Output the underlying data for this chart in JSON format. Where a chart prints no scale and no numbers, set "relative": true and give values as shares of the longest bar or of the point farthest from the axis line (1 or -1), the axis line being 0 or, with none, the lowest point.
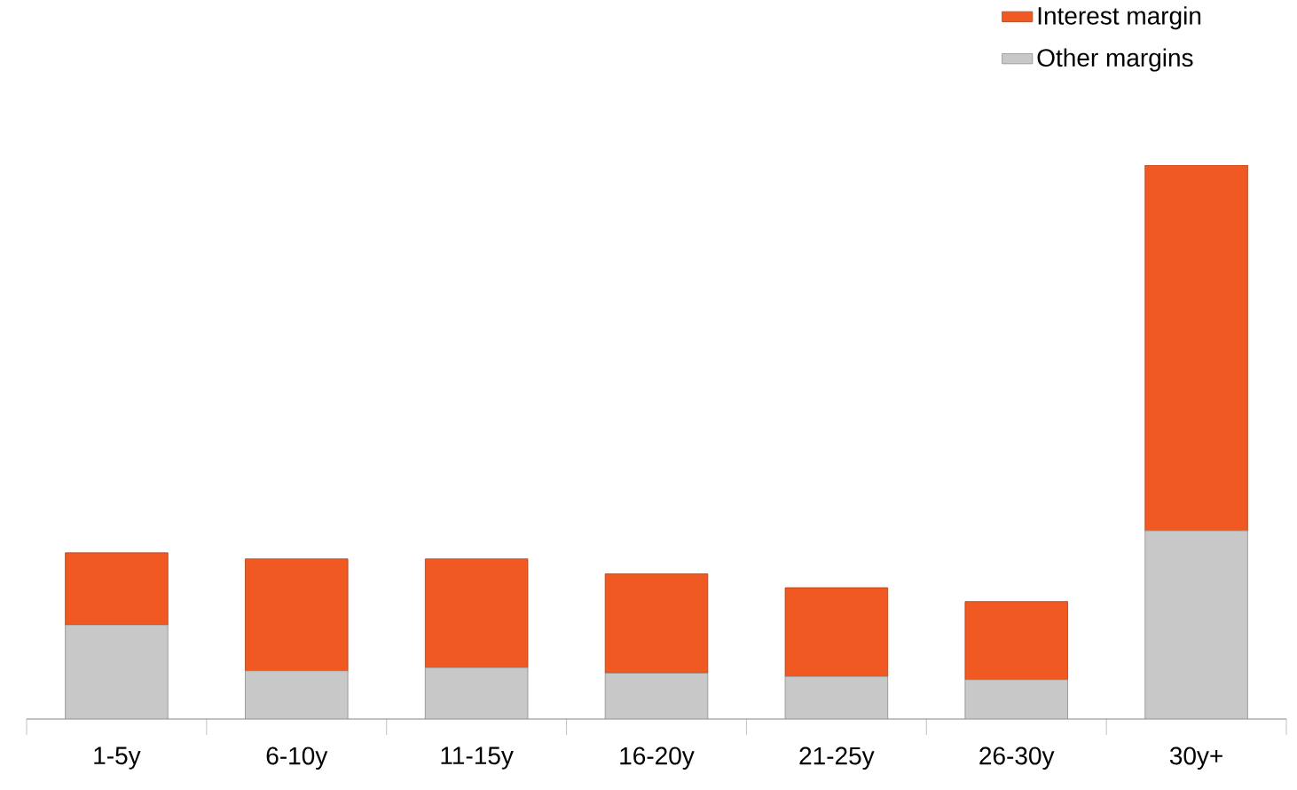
{
  "chart_data": {
    "type": "bar",
    "stacked": true,
    "relative": true,
    "legend": "top right",
    "categories": [
      "1-5y",
      "6-10y",
      "11-15y",
      "16-20y",
      "21-25y",
      "26-30y",
      "30y+"
    ],
    "series": [
      {
        "name": "Other margins",
        "color": "#c8c8c8",
        "values": [
          0.17,
          0.087,
          0.093,
          0.083,
          0.077,
          0.071,
          0.34
        ]
      },
      {
        "name": "Interest margin",
        "color": "#f05a22",
        "values": [
          0.13,
          0.202,
          0.196,
          0.179,
          0.16,
          0.141,
          0.66
        ]
      }
    ]
  }
}
